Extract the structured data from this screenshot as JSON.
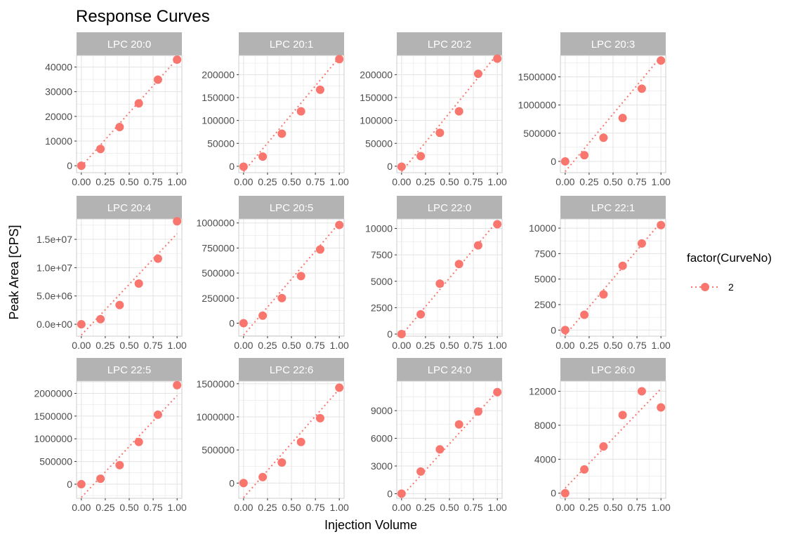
{
  "chart_data": {
    "type": "scatter",
    "title": "Response Curves",
    "xlabel": "Injection Volume",
    "ylabel": "Peak Area [CPS]",
    "legend": {
      "title": "factor(CurveNo)",
      "entries": [
        "2"
      ],
      "placement": "right"
    },
    "series_color": "#f8766d",
    "strip_color": "#b3b3b3",
    "grid_color": "#e3e3e3",
    "x": [
      0,
      0.2,
      0.4,
      0.6,
      0.8,
      1.0
    ],
    "x_tick_labels": [
      "0.00",
      "0.25",
      "0.50",
      "0.75",
      "1.00"
    ],
    "panels": [
      {
        "label": "LPC 20:0",
        "y": [
          0,
          6800,
          15700,
          25300,
          34900,
          43000
        ],
        "ylim": [
          -2800,
          44700
        ],
        "y_ticks": [
          0,
          10000,
          20000,
          30000,
          40000
        ],
        "y_tick_labels": [
          "0",
          "10000",
          "20000",
          "30000",
          "40000"
        ],
        "fit": [
          -300,
          43300
        ]
      },
      {
        "label": "LPC 20:1",
        "y": [
          -1000,
          21000,
          71000,
          120000,
          167000,
          234000
        ],
        "ylim": [
          -14000,
          242000
        ],
        "y_ticks": [
          0,
          50000,
          100000,
          150000,
          200000
        ],
        "y_tick_labels": [
          "0",
          "50000",
          "100000",
          "150000",
          "200000"
        ],
        "fit": [
          -12000,
          238000
        ]
      },
      {
        "label": "LPC 20:2",
        "y": [
          -1000,
          22000,
          73000,
          120000,
          202000,
          235000
        ],
        "ylim": [
          -14000,
          242000
        ],
        "y_ticks": [
          0,
          50000,
          100000,
          150000,
          200000
        ],
        "y_tick_labels": [
          "0",
          "50000",
          "100000",
          "150000",
          "200000"
        ],
        "fit": [
          -12000,
          245000
        ]
      },
      {
        "label": "LPC 20:3",
        "y": [
          0,
          110000,
          420000,
          770000,
          1290000,
          1790000
        ],
        "ylim": [
          -200000,
          1880000
        ],
        "y_ticks": [
          0,
          500000,
          1000000,
          1500000
        ],
        "y_tick_labels": [
          "0",
          "500000",
          "1000000",
          "1500000"
        ],
        "fit": [
          -180000,
          1860000
        ]
      },
      {
        "label": "LPC 20:4",
        "y": [
          0,
          900000,
          3400000,
          7200000,
          11600000,
          18200000
        ],
        "ylim": [
          -2100000,
          18600000
        ],
        "y_ticks": [
          0,
          5000000,
          10000000,
          15000000
        ],
        "y_tick_labels": [
          "0.0e+00",
          "5.0e+06",
          "1.0e+07",
          "1.5e+07"
        ],
        "fit": [
          -1900000,
          16000000
        ]
      },
      {
        "label": "LPC 20:5",
        "y": [
          0,
          75000,
          250000,
          470000,
          735000,
          980000
        ],
        "ylim": [
          -130000,
          1040000
        ],
        "y_ticks": [
          0,
          250000,
          500000,
          750000,
          1000000
        ],
        "y_tick_labels": [
          "0",
          "250000",
          "500000",
          "750000",
          "1000000"
        ],
        "fit": [
          -120000,
          1000000
        ]
      },
      {
        "label": "LPC 22:0",
        "y": [
          0,
          1870,
          4780,
          6630,
          8400,
          10400
        ],
        "ylim": [
          -200,
          10900
        ],
        "y_ticks": [
          0,
          2500,
          5000,
          7500,
          10000
        ],
        "y_tick_labels": [
          "0",
          "2500",
          "5000",
          "7500",
          "10000"
        ],
        "fit": [
          -100,
          10700
        ]
      },
      {
        "label": "LPC 22:1",
        "y": [
          0,
          1500,
          3500,
          6300,
          8500,
          10300
        ],
        "ylim": [
          -600,
          10900
        ],
        "y_ticks": [
          0,
          2500,
          5000,
          7500,
          10000
        ],
        "y_tick_labels": [
          "0",
          "2500",
          "5000",
          "7500",
          "10000"
        ],
        "fit": [
          -500,
          10600
        ]
      },
      {
        "label": "LPC 22:5",
        "y": [
          0,
          120000,
          420000,
          930000,
          1530000,
          2180000
        ],
        "ylim": [
          -310000,
          2270000
        ],
        "y_ticks": [
          0,
          500000,
          1000000,
          1500000,
          2000000
        ],
        "y_tick_labels": [
          "0",
          "500000",
          "1000000",
          "1500000",
          "2000000"
        ],
        "fit": [
          -290000,
          1950000
        ]
      },
      {
        "label": "LPC 22:6",
        "y": [
          0,
          90000,
          310000,
          620000,
          980000,
          1440000
        ],
        "ylim": [
          -230000,
          1540000
        ],
        "y_ticks": [
          0,
          500000,
          1000000,
          1500000
        ],
        "y_tick_labels": [
          "0",
          "500000",
          "1000000",
          "1500000"
        ],
        "fit": [
          -220000,
          1420000
        ]
      },
      {
        "label": "LPC 24:0",
        "y": [
          0,
          2400,
          4800,
          7500,
          8900,
          11000
        ],
        "ylim": [
          -500,
          12200
        ],
        "y_ticks": [
          0,
          3000,
          6000,
          9000
        ],
        "y_tick_labels": [
          "0",
          "3000",
          "6000",
          "9000"
        ],
        "fit": [
          -300,
          11100
        ]
      },
      {
        "label": "LPC 26:0",
        "y": [
          0,
          2800,
          5500,
          9200,
          12000,
          10100
        ],
        "ylim": [
          -600,
          13200
        ],
        "y_ticks": [
          0,
          4000,
          8000,
          12000
        ],
        "y_tick_labels": [
          "0",
          "4000",
          "8000",
          "12000"
        ],
        "fit": [
          600,
          12300
        ]
      }
    ]
  }
}
